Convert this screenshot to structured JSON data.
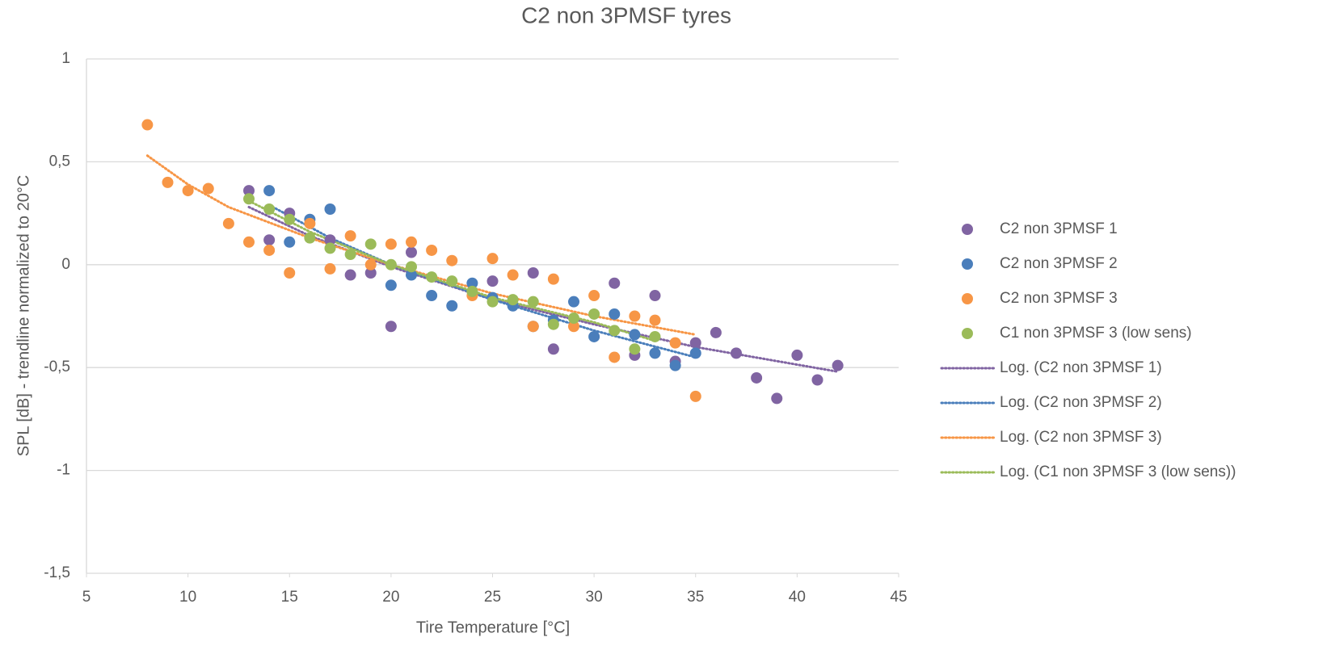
{
  "chart_data": {
    "type": "scatter",
    "title": "C2 non 3PMSF tyres",
    "x_label": "Tire Temperature [°C]",
    "y_label": "SPL [dB] - trendline normalized to 20°C",
    "xlim": [
      5,
      45
    ],
    "xticks": [
      5,
      10,
      15,
      20,
      25,
      30,
      35,
      40,
      45
    ],
    "ylim": [
      -1.5,
      1
    ],
    "yticks": [
      {
        "value": -1.5,
        "label": "-1,5"
      },
      -1,
      {
        "value": -0.5,
        "label": "-0,5"
      },
      0,
      {
        "value": 0.5,
        "label": "0,5"
      },
      1
    ],
    "grid": true,
    "legend": "right",
    "series": [
      {
        "name": "C2 non 3PMSF 1",
        "color": "#8064a2",
        "x": [
          13,
          14,
          15,
          17,
          18,
          19,
          20,
          21,
          25,
          27,
          28,
          31,
          32,
          33,
          34,
          35,
          36,
          37,
          38,
          39,
          40,
          41,
          42
        ],
        "values": [
          0.36,
          0.12,
          0.25,
          0.12,
          -0.05,
          -0.04,
          -0.3,
          0.06,
          -0.08,
          -0.04,
          -0.41,
          -0.09,
          -0.44,
          -0.15,
          -0.47,
          -0.38,
          -0.33,
          -0.43,
          -0.55,
          -0.65,
          -0.44,
          -0.56,
          -0.49
        ]
      },
      {
        "name": "C2 non 3PMSF 2",
        "color": "#4a7ebb",
        "x": [
          14,
          15,
          16,
          17,
          20,
          21,
          22,
          23,
          24,
          25,
          26,
          27,
          28,
          29,
          30,
          31,
          32,
          33,
          34,
          35
        ],
        "values": [
          0.36,
          0.11,
          0.22,
          0.27,
          -0.1,
          -0.05,
          -0.15,
          -0.2,
          -0.09,
          -0.16,
          -0.2,
          -0.3,
          -0.27,
          -0.18,
          -0.35,
          -0.24,
          -0.34,
          -0.43,
          -0.49,
          -0.43
        ]
      },
      {
        "name": "C2 non 3PMSF 3",
        "color": "#f79646",
        "x": [
          8,
          9,
          10,
          11,
          12,
          13,
          14,
          15,
          16,
          17,
          18,
          19,
          20,
          21,
          22,
          23,
          24,
          25,
          26,
          27,
          28,
          29,
          30,
          31,
          32,
          33,
          34,
          35
        ],
        "values": [
          0.68,
          0.4,
          0.36,
          0.37,
          0.2,
          0.11,
          0.07,
          -0.04,
          0.2,
          -0.02,
          0.14,
          0.0,
          0.1,
          0.11,
          0.07,
          0.02,
          -0.15,
          0.03,
          -0.05,
          -0.3,
          -0.07,
          -0.3,
          -0.15,
          -0.45,
          -0.25,
          -0.27,
          -0.38,
          -0.64
        ]
      },
      {
        "name": "C1 non 3PMSF 3 (low sens)",
        "color": "#9bbb59",
        "x": [
          13,
          14,
          15,
          16,
          17,
          18,
          19,
          20,
          21,
          22,
          23,
          24,
          25,
          26,
          27,
          28,
          29,
          30,
          31,
          32,
          33
        ],
        "values": [
          0.32,
          0.27,
          0.22,
          0.13,
          0.08,
          0.05,
          0.1,
          0.0,
          -0.01,
          -0.06,
          -0.08,
          -0.13,
          -0.18,
          -0.17,
          -0.18,
          -0.29,
          -0.26,
          -0.24,
          -0.32,
          -0.41,
          -0.35
        ]
      }
    ],
    "trendlines": [
      {
        "name": "Log. (C2 non 3PMSF 1)",
        "color": "#8064a2",
        "x": [
          13,
          16,
          20,
          25,
          30,
          35,
          42
        ],
        "values": [
          0.28,
          0.14,
          -0.01,
          -0.17,
          -0.29,
          -0.4,
          -0.52
        ]
      },
      {
        "name": "Log. (C2 non 3PMSF 2)",
        "color": "#4a7ebb",
        "x": [
          14,
          17,
          20,
          25,
          30,
          35
        ],
        "values": [
          0.29,
          0.13,
          0.0,
          -0.17,
          -0.32,
          -0.45
        ]
      },
      {
        "name": "Log. (C2 non 3PMSF 3)",
        "color": "#f79646",
        "x": [
          8,
          10,
          12,
          16,
          20,
          25,
          30,
          35
        ],
        "values": [
          0.53,
          0.39,
          0.28,
          0.13,
          0.0,
          -0.14,
          -0.25,
          -0.34
        ]
      },
      {
        "name": "Log. (C1 non 3PMSF 3 (low sens))",
        "color": "#9bbb59",
        "x": [
          13,
          16,
          20,
          25,
          30,
          33
        ],
        "values": [
          0.31,
          0.16,
          0.0,
          -0.16,
          -0.28,
          -0.37
        ]
      }
    ]
  }
}
